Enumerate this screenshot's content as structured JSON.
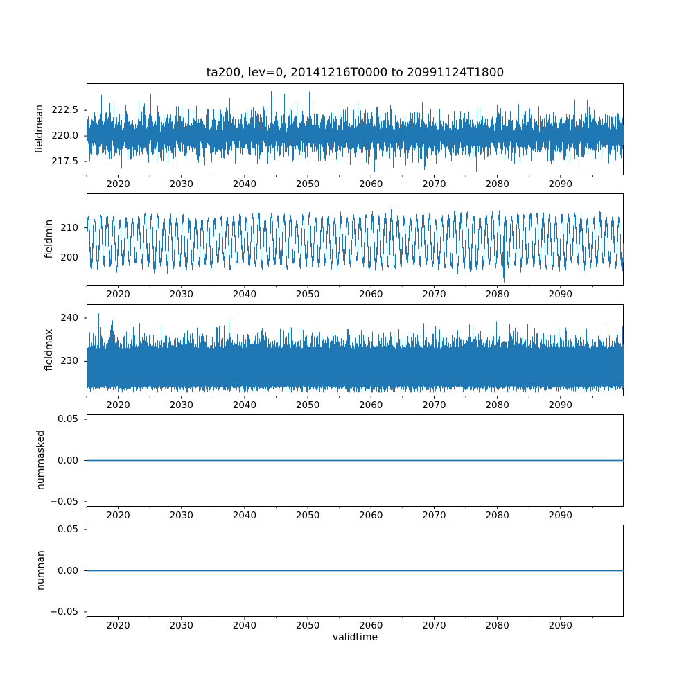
{
  "chart_data": {
    "type": "line",
    "title": "ta200, lev=0, 20141216T0000 to 20991124T1800",
    "xlabel": "validtime",
    "grid": false,
    "legend": null,
    "line_color": "#1f77b4",
    "axis_color": "#000000",
    "background_color": "#ffffff",
    "x_range": [
      2015,
      2100
    ],
    "x_major_ticks": {
      "values": [
        2020,
        2030,
        2040,
        2050,
        2060,
        2070,
        2080,
        2090
      ],
      "labels": [
        "2020",
        "2030",
        "2040",
        "2050",
        "2060",
        "2070",
        "2080",
        "2090"
      ]
    },
    "x_minor_ticks": [
      2015,
      2025,
      2035,
      2045,
      2055,
      2065,
      2075,
      2085,
      2095
    ],
    "subplots": [
      {
        "ylabel": "fieldmean",
        "ylim": [
          216.15,
          225.15
        ],
        "yticks": {
          "values": [
            217.5,
            220.0,
            222.5
          ],
          "labels": [
            "217.5",
            "220.0",
            "222.5"
          ]
        },
        "series": {
          "name": "fieldmean",
          "kind": "noisy-band",
          "seed": 11,
          "base": 220.0,
          "seasonal_amp": 0.35,
          "core_half": 0.75,
          "tail_hi": 0.95,
          "tail_lo": 0.85,
          "spike_hi_prob": 0.02,
          "spike_lo_prob": 0.015,
          "max": 224.7,
          "min": 216.5
        }
      },
      {
        "ylabel": "fieldmin",
        "ylim": [
          191.0,
          221.3
        ],
        "yticks": {
          "values": [
            200,
            210
          ],
          "labels": [
            "200",
            "210"
          ]
        },
        "series": {
          "name": "fieldmin",
          "kind": "annual-cycle",
          "seed": 22,
          "center": 205.8,
          "amp_base": 7.0,
          "amp_var": 2.0,
          "period_years": 1,
          "hf_noise": 1.1,
          "deep_dip_year": 2081,
          "deep_dip_value": 192.0,
          "max": 219.0,
          "min": 191.8
        }
      },
      {
        "ylabel": "fieldmax",
        "ylim": [
          221.9,
          243.2
        ],
        "yticks": {
          "values": [
            230,
            240
          ],
          "labels": [
            "230",
            "240"
          ]
        },
        "series": {
          "name": "fieldmax",
          "kind": "noisy-band-asym",
          "seed": 33,
          "lo_base": 224.3,
          "lo_tail": 0.8,
          "hi_base": 233.0,
          "hi_tail": 2.1,
          "spike_prob": 0.04,
          "spike_extra": 4.6,
          "max": 242.3,
          "min": 222.8
        }
      },
      {
        "ylabel": "nummasked",
        "ylim": [
          -0.056,
          0.056
        ],
        "yticks": {
          "values": [
            -0.05,
            0,
            0.05
          ],
          "labels": [
            "−0.05",
            "0.00",
            "0.05"
          ]
        },
        "series": {
          "name": "nummasked",
          "kind": "constant",
          "value": 0,
          "value_label": "0.00"
        }
      },
      {
        "ylabel": "numnan",
        "ylim": [
          -0.056,
          0.056
        ],
        "yticks": {
          "values": [
            -0.05,
            0,
            0.05
          ],
          "labels": [
            "−0.05",
            "0.00",
            "0.05"
          ]
        },
        "series": {
          "name": "numnan",
          "kind": "constant",
          "value": 0,
          "value_label": "0.00"
        }
      }
    ]
  }
}
